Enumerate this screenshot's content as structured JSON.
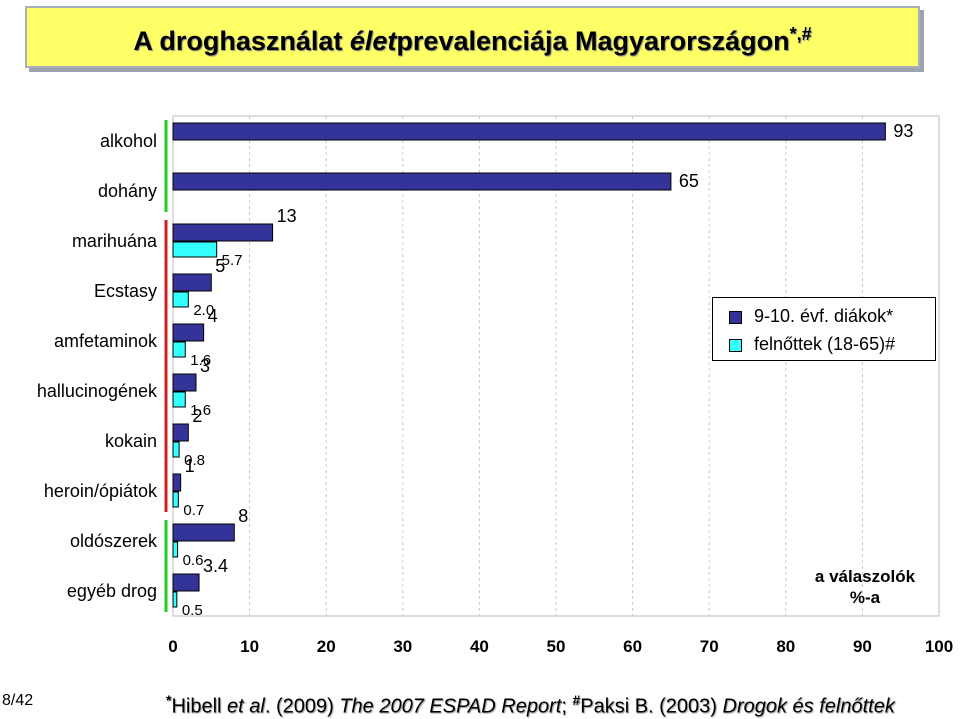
{
  "title": {
    "part1": "A droghasználat ",
    "part2": "élet",
    "part3": "prevalenciája Magyarországon",
    "marks": "*,#"
  },
  "chart_data": {
    "type": "bar",
    "orientation": "horizontal",
    "categories": [
      "alkohol",
      "dohány",
      "marihuána",
      "Ecstasy",
      "amfetaminok",
      "hallucinogének",
      "kokain",
      "heroin/ópiátok",
      "oldószerek",
      "egyéb drog"
    ],
    "series": [
      {
        "name": "9-10. évf. diákok*",
        "color": "#333399",
        "values": [
          93,
          65,
          13,
          5,
          4,
          3,
          2,
          1,
          8,
          3.4
        ]
      },
      {
        "name": "felnőttek (18-65)#",
        "color": "#33ffff",
        "values": [
          null,
          null,
          5.7,
          2.0,
          1.6,
          1.6,
          0.8,
          0.7,
          0.6,
          0.5
        ]
      }
    ],
    "series1_labels": [
      "93",
      "65",
      "13",
      "5",
      "4",
      "3",
      "2",
      "1",
      "8",
      "3.4"
    ],
    "series2_labels": [
      "",
      "",
      "5.7",
      "2.0",
      "1.6",
      "1.6",
      "0.8",
      "0.7",
      "0.6",
      "0.5"
    ],
    "xlim": [
      0,
      100
    ],
    "xticks": [
      "0",
      "10",
      "20",
      "30",
      "40",
      "50",
      "60",
      "70",
      "80",
      "90",
      "100"
    ],
    "unit_label": [
      "a válaszolók",
      "%-a"
    ],
    "legend_position": "right",
    "grid": "vertical dashed"
  },
  "category_marker_colors": {
    "green": "#22cc22",
    "red": "#cc2222"
  },
  "slide_number": "8/42",
  "footer": {
    "m1": "*",
    "t1": "Hibell ",
    "t2": "et al",
    "t3": ". (2009) ",
    "t4": "The 2007 ESPAD Report",
    "t5": "; ",
    "m2": "#",
    "t6": "Paksi B. (2003) ",
    "t7": "Drogok és felnőttek"
  }
}
